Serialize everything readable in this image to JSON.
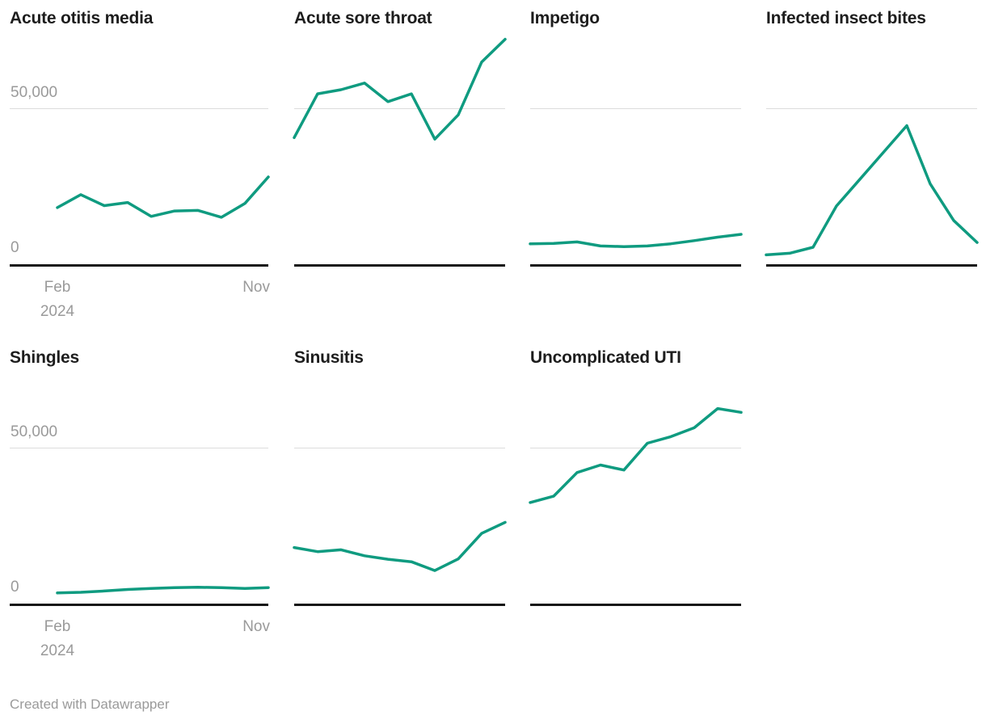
{
  "page": {
    "background": "#ffffff",
    "footer_text": "Created with Datawrapper"
  },
  "colors": {
    "line": "#0f9b80",
    "gridline": "#dcdcdc",
    "axis": "#161616",
    "title_text": "#1d1d1d",
    "tick_text": "#9a9a9a"
  },
  "axis": {
    "y_top_label": "50,000",
    "y_zero_label": "0",
    "y_gridline_value": 50000,
    "x_start_month": "Feb",
    "x_start_year": "2024",
    "x_end_month": "Nov"
  },
  "chart_data": [
    {
      "type": "line",
      "title": "Acute otitis media",
      "x": [
        "Feb",
        "Mar",
        "Apr",
        "May",
        "Jun",
        "Jul",
        "Aug",
        "Sep",
        "Oct",
        "Nov"
      ],
      "x_year": "2024",
      "values": [
        18500,
        22600,
        19100,
        20100,
        15700,
        17400,
        17600,
        15400,
        19800,
        28200
      ],
      "ylim": [
        0,
        75000
      ],
      "gridline_at": 50000,
      "legend": "none"
    },
    {
      "type": "line",
      "title": "Acute sore throat",
      "x": [
        "Feb",
        "Mar",
        "Apr",
        "May",
        "Jun",
        "Jul",
        "Aug",
        "Sep",
        "Oct",
        "Nov"
      ],
      "x_year": "2024",
      "values": [
        40700,
        54600,
        55900,
        58000,
        52100,
        54600,
        40200,
        47900,
        64700,
        71900
      ],
      "ylim": [
        0,
        75000
      ],
      "gridline_at": 50000,
      "legend": "none"
    },
    {
      "type": "line",
      "title": "Impetigo",
      "x": [
        "Feb",
        "Mar",
        "Apr",
        "May",
        "Jun",
        "Jul",
        "Aug",
        "Sep",
        "Oct",
        "Nov"
      ],
      "x_year": "2024",
      "values": [
        7000,
        7100,
        7600,
        6300,
        6100,
        6300,
        7000,
        8000,
        9100,
        10000
      ],
      "ylim": [
        0,
        75000
      ],
      "gridline_at": 50000,
      "legend": "none"
    },
    {
      "type": "line",
      "title": "Infected insect bites",
      "x": [
        "Feb",
        "Mar",
        "Apr",
        "May",
        "Jun",
        "Jul",
        "Aug",
        "Sep",
        "Oct",
        "Nov"
      ],
      "x_year": "2024",
      "values": [
        3500,
        4000,
        5900,
        19000,
        27500,
        36000,
        44500,
        26000,
        14400,
        7400
      ],
      "ylim": [
        0,
        75000
      ],
      "gridline_at": 50000,
      "legend": "none"
    },
    {
      "type": "line",
      "title": "Shingles",
      "x": [
        "Feb",
        "Mar",
        "Apr",
        "May",
        "Jun",
        "Jul",
        "Aug",
        "Sep",
        "Oct",
        "Nov"
      ],
      "x_year": "2024",
      "values": [
        3900,
        4100,
        4500,
        5000,
        5300,
        5600,
        5700,
        5600,
        5300,
        5600
      ],
      "ylim": [
        0,
        75000
      ],
      "gridline_at": 50000,
      "legend": "none"
    },
    {
      "type": "line",
      "title": "Sinusitis",
      "x": [
        "Feb",
        "Mar",
        "Apr",
        "May",
        "Jun",
        "Jul",
        "Aug",
        "Sep",
        "Oct",
        "Nov"
      ],
      "x_year": "2024",
      "values": [
        18300,
        17000,
        17600,
        15700,
        14600,
        13800,
        11000,
        14700,
        22800,
        26300
      ],
      "ylim": [
        0,
        75000
      ],
      "gridline_at": 50000,
      "legend": "none"
    },
    {
      "type": "line",
      "title": "Uncomplicated UTI",
      "x": [
        "Feb",
        "Mar",
        "Apr",
        "May",
        "Jun",
        "Jul",
        "Aug",
        "Sep",
        "Oct",
        "Nov"
      ],
      "x_year": "2024",
      "values": [
        32600,
        34600,
        42100,
        44500,
        42900,
        51400,
        53500,
        56300,
        62400,
        61200
      ],
      "ylim": [
        0,
        75000
      ],
      "gridline_at": 50000,
      "legend": "none"
    }
  ]
}
